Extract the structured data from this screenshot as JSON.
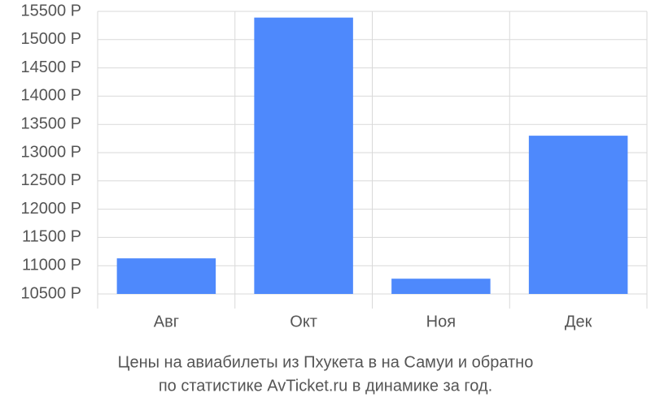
{
  "chart_data": {
    "type": "bar",
    "title": [
      "Цены на авиабилеты из Пхукета в на Самуи и обратно",
      "по статистике AvTicket.ru в динамике за год."
    ],
    "categories": [
      "Авг",
      "Окт",
      "Ноя",
      "Дек"
    ],
    "values": [
      11130,
      15390,
      10770,
      13300
    ],
    "color": "#4e89fc",
    "ylim": [
      10500,
      15500
    ],
    "yticks": [
      {
        "value": 10500,
        "label": "10500 Р"
      },
      {
        "value": 11000,
        "label": "11000 Р"
      },
      {
        "value": 11500,
        "label": "11500 Р"
      },
      {
        "value": 12000,
        "label": "12000 Р"
      },
      {
        "value": 12500,
        "label": "12500 Р"
      },
      {
        "value": 13000,
        "label": "13000 Р"
      },
      {
        "value": 13500,
        "label": "13500 Р"
      },
      {
        "value": 14000,
        "label": "14000 Р"
      },
      {
        "value": 14500,
        "label": "14500 Р"
      },
      {
        "value": 15000,
        "label": "15000 Р"
      },
      {
        "value": 15500,
        "label": "15500 Р"
      }
    ],
    "grid": true
  }
}
